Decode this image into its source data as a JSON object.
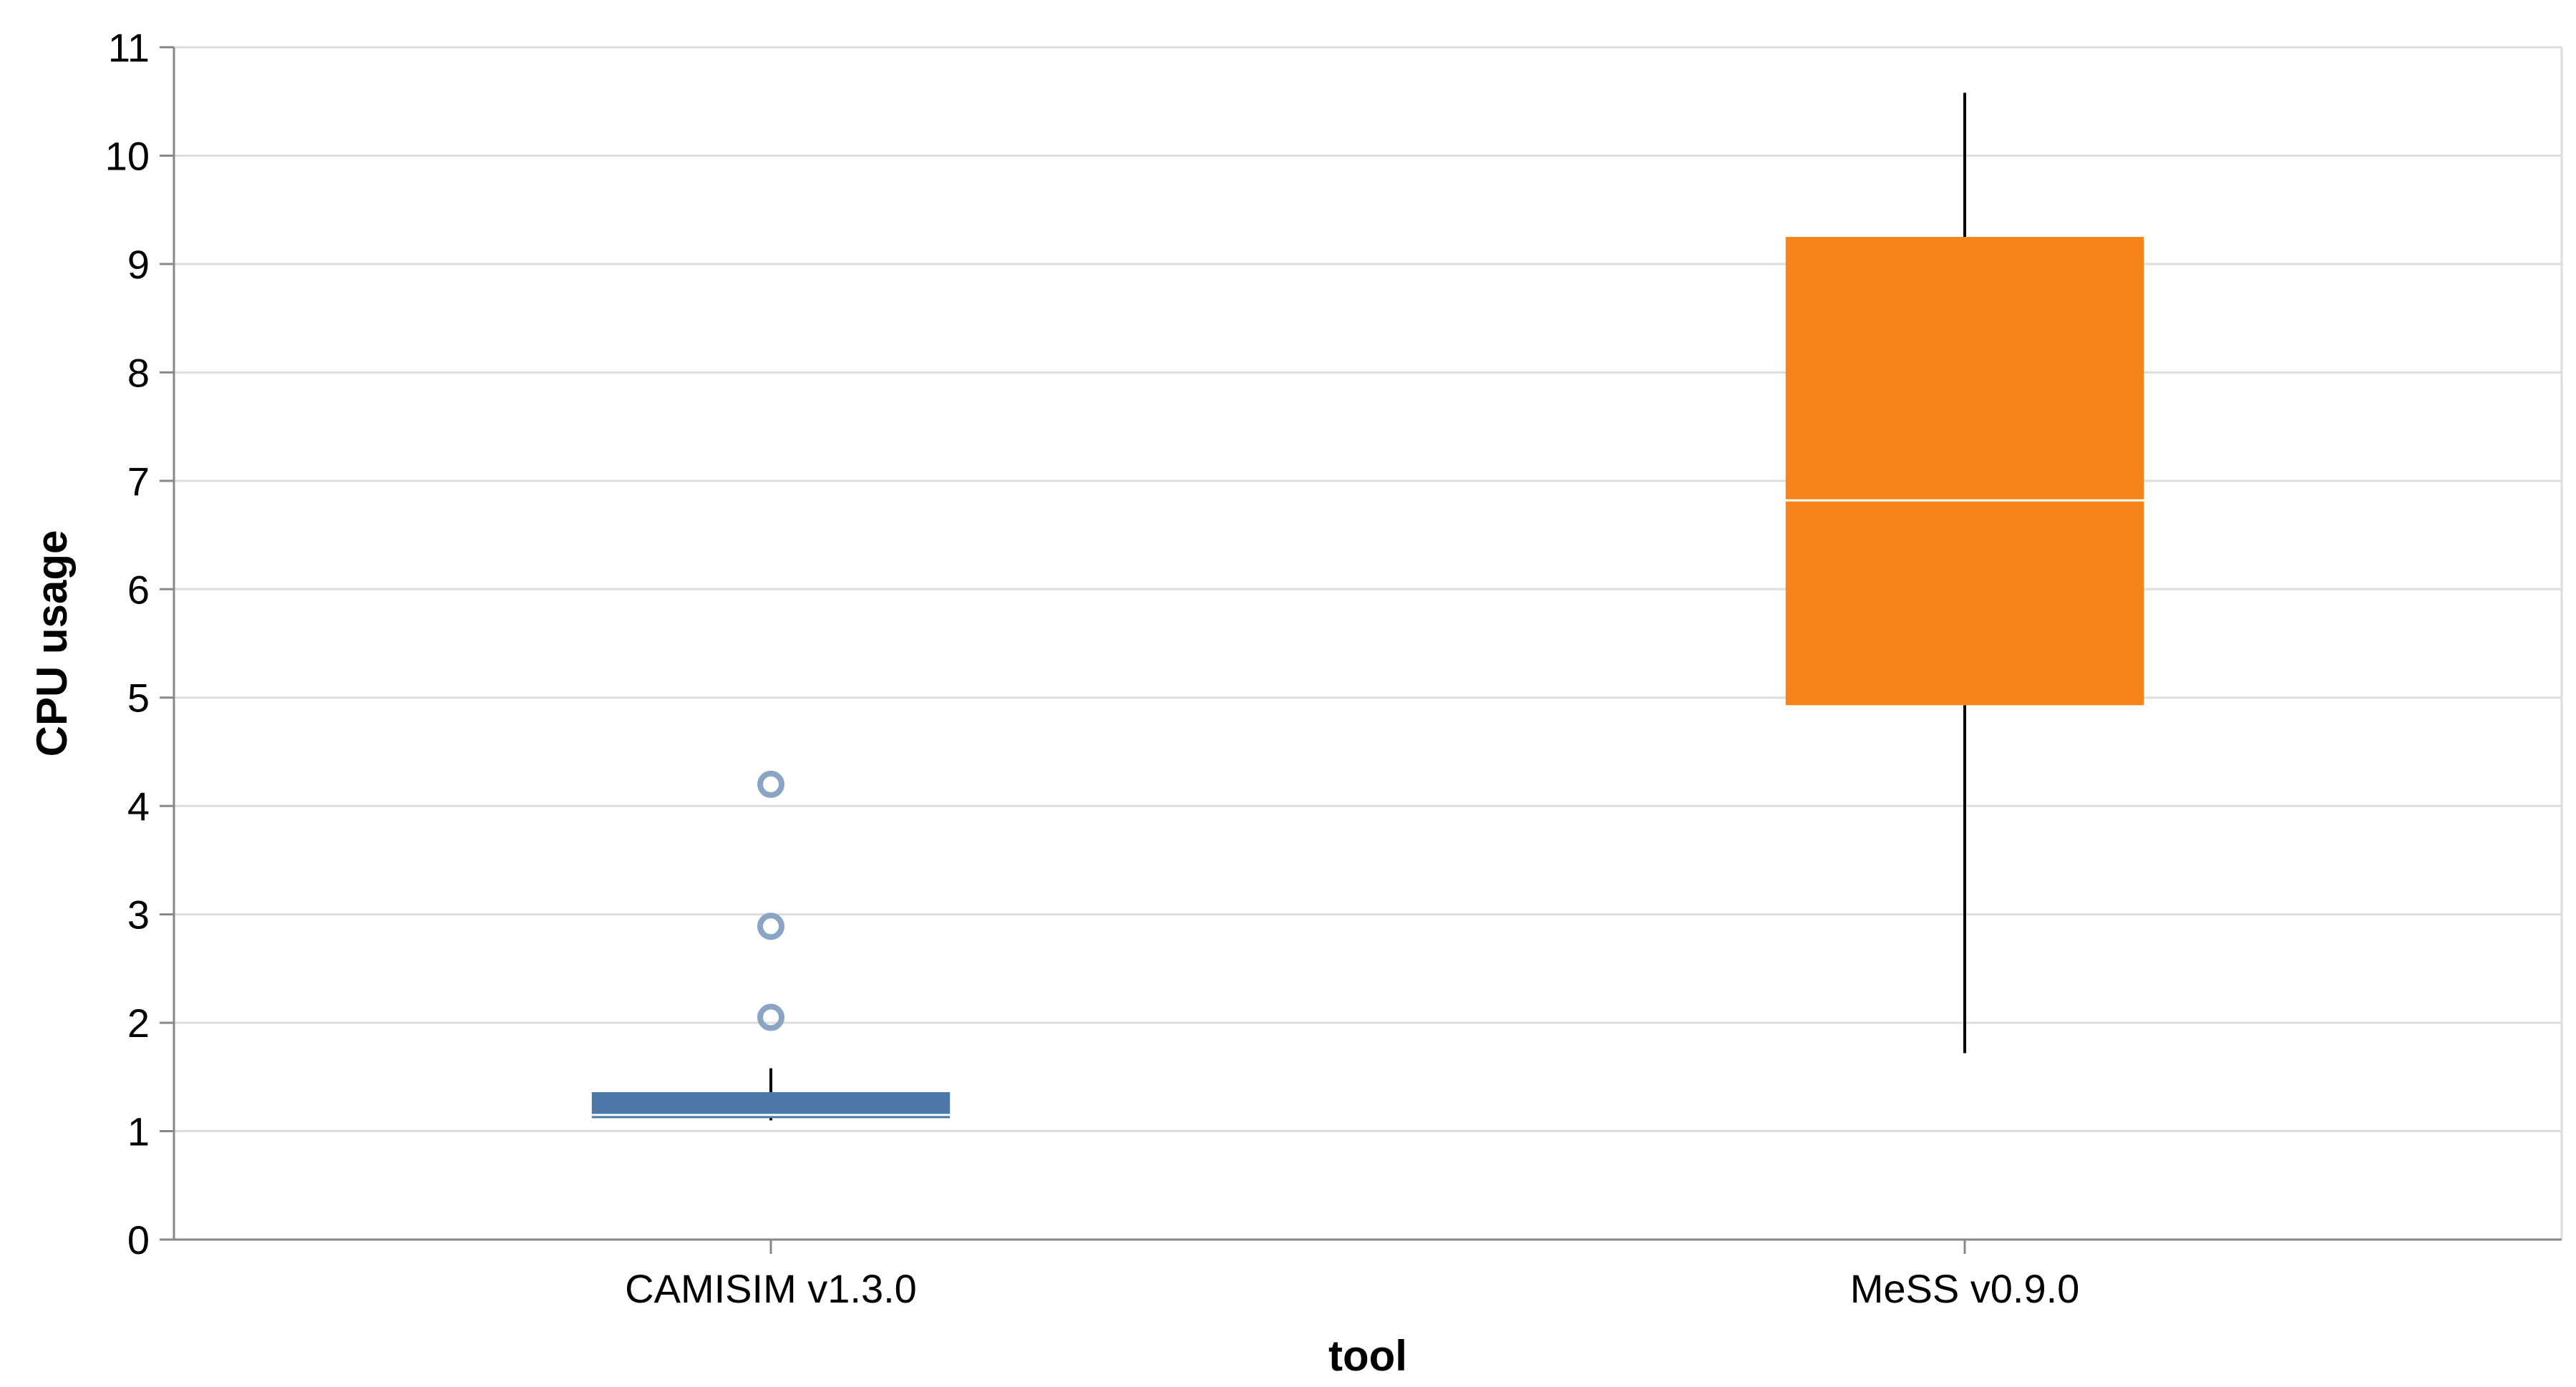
{
  "chart_data": {
    "type": "boxplot",
    "xlabel": "tool",
    "ylabel": "CPU usage",
    "ylim": [
      0,
      11
    ],
    "yticks": [
      0,
      1,
      2,
      3,
      4,
      5,
      6,
      7,
      8,
      9,
      10,
      11
    ],
    "grid": true,
    "categories": [
      "CAMISIM v1.3.0",
      "MeSS v0.9.0"
    ],
    "boxes": [
      {
        "category": "CAMISIM v1.3.0",
        "color": "#4c78a8",
        "outlier_color": "#8aa5c4",
        "min": 1.1,
        "q1": 1.12,
        "median": 1.15,
        "q3": 1.36,
        "max": 1.58,
        "outliers": [
          2.05,
          2.89,
          4.2
        ]
      },
      {
        "category": "MeSS v0.9.0",
        "color": "#f58518",
        "outlier_color": "#f58518",
        "min": 1.72,
        "q1": 4.93,
        "median": 6.82,
        "q3": 9.25,
        "max": 10.58,
        "outliers": []
      }
    ]
  }
}
